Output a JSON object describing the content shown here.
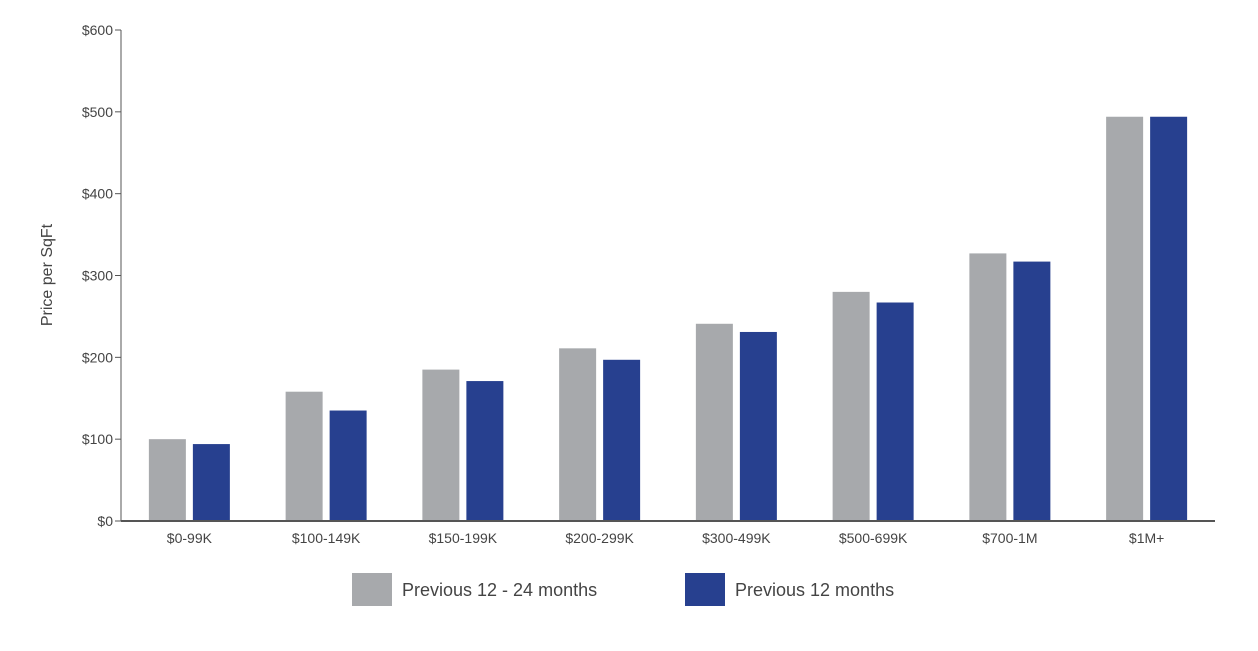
{
  "chart_data": {
    "type": "bar",
    "ylabel": "Price per SqFt",
    "xlabel": "",
    "ylim": [
      0,
      600
    ],
    "yticks": [
      {
        "value": 0,
        "label": "$0"
      },
      {
        "value": 100,
        "label": "$100"
      },
      {
        "value": 200,
        "label": "$200"
      },
      {
        "value": 300,
        "label": "$300"
      },
      {
        "value": 400,
        "label": "$400"
      },
      {
        "value": 500,
        "label": "$500"
      },
      {
        "value": 600,
        "label": "$600"
      }
    ],
    "categories": [
      "$0-99K",
      "$100-149K",
      "$150-199K",
      "$200-299K",
      "$300-499K",
      "$500-699K",
      "$700-1M",
      "$1M+"
    ],
    "series": [
      {
        "name": "Previous 12 - 24 months",
        "color": "#a7a9ac",
        "values": [
          100,
          158,
          185,
          211,
          241,
          280,
          327,
          494
        ]
      },
      {
        "name": "Previous 12 months",
        "color": "#27408f",
        "values": [
          94,
          135,
          171,
          197,
          231,
          267,
          317,
          494
        ]
      }
    ],
    "grid": false,
    "legend_position": "bottom-center"
  }
}
